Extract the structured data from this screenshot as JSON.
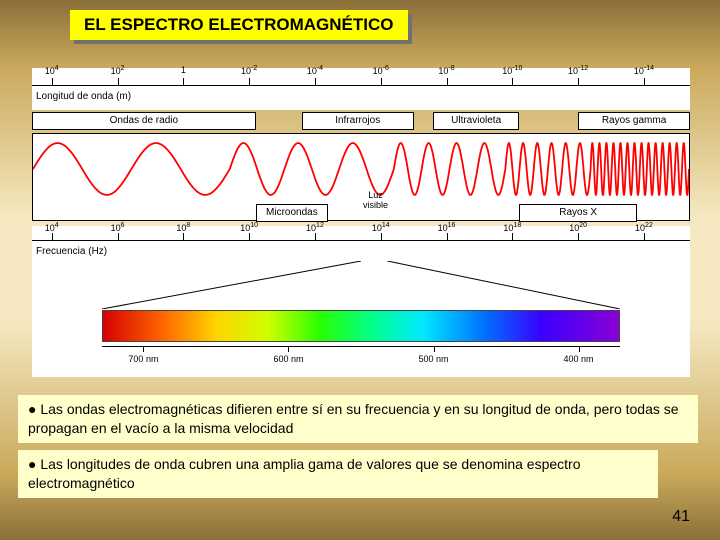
{
  "title": "EL ESPECTRO ELECTROMAGNÉTICO",
  "wavelength_axis": {
    "label": "Longitud de onda (m)",
    "ticks": [
      {
        "exp": "4",
        "pos_pct": 3
      },
      {
        "exp": "2",
        "pos_pct": 13
      },
      {
        "exp": "0",
        "pos_pct": 23,
        "label": "1"
      },
      {
        "exp": "-2",
        "pos_pct": 33
      },
      {
        "exp": "-4",
        "pos_pct": 43
      },
      {
        "exp": "-6",
        "pos_pct": 53
      },
      {
        "exp": "-8",
        "pos_pct": 63
      },
      {
        "exp": "-10",
        "pos_pct": 73
      },
      {
        "exp": "-12",
        "pos_pct": 83
      },
      {
        "exp": "-14",
        "pos_pct": 93
      }
    ]
  },
  "regions_top": [
    {
      "label": "Ondas de radio",
      "left_pct": 0,
      "width_pct": 34
    },
    {
      "label": "Infrarrojos",
      "left_pct": 41,
      "width_pct": 17
    },
    {
      "label": "Ultravioleta",
      "left_pct": 61,
      "width_pct": 13
    },
    {
      "label": "Rayos gamma",
      "left_pct": 83,
      "width_pct": 17
    }
  ],
  "regions_bottom": [
    {
      "label": "Microondas",
      "left_pct": 34,
      "width_pct": 11
    },
    {
      "label": "Rayos X",
      "left_pct": 74,
      "width_pct": 18
    }
  ],
  "luz_visible": "Luz\nvisible",
  "wave": {
    "color": "#ff0000",
    "stroke_width": 1.8,
    "amplitude": 26,
    "cycles_by_zone": [
      {
        "x_end_pct": 30,
        "cycles": 2
      },
      {
        "x_end_pct": 55,
        "cycles": 3
      },
      {
        "x_end_pct": 72,
        "cycles": 4
      },
      {
        "x_end_pct": 85,
        "cycles": 6
      },
      {
        "x_end_pct": 100,
        "cycles": 14
      }
    ]
  },
  "freq_axis": {
    "label": "Frecuencia (Hz)",
    "ticks": [
      {
        "exp": "4",
        "pos_pct": 3
      },
      {
        "exp": "6",
        "pos_pct": 13
      },
      {
        "exp": "8",
        "pos_pct": 23
      },
      {
        "exp": "10",
        "pos_pct": 33
      },
      {
        "exp": "12",
        "pos_pct": 43
      },
      {
        "exp": "14",
        "pos_pct": 53
      },
      {
        "exp": "16",
        "pos_pct": 63
      },
      {
        "exp": "18",
        "pos_pct": 73
      },
      {
        "exp": "20",
        "pos_pct": 83
      },
      {
        "exp": "22",
        "pos_pct": 93
      }
    ]
  },
  "visible_spectrum": {
    "cone_from_pct": [
      50,
      54
    ],
    "nm_ticks": [
      {
        "label": "700 nm",
        "pos_pct": 8
      },
      {
        "label": "600 nm",
        "pos_pct": 36
      },
      {
        "label": "500 nm",
        "pos_pct": 64
      },
      {
        "label": "400 nm",
        "pos_pct": 92
      }
    ],
    "gradient_stops": [
      {
        "color": "#d60000",
        "pct": 0
      },
      {
        "color": "#ff6a00",
        "pct": 12
      },
      {
        "color": "#ffd400",
        "pct": 22
      },
      {
        "color": "#d0ff00",
        "pct": 32
      },
      {
        "color": "#2aff00",
        "pct": 42
      },
      {
        "color": "#00ff88",
        "pct": 52
      },
      {
        "color": "#00e8ff",
        "pct": 62
      },
      {
        "color": "#0070ff",
        "pct": 74
      },
      {
        "color": "#3a00ff",
        "pct": 85
      },
      {
        "color": "#8a00d6",
        "pct": 100
      }
    ]
  },
  "bullets": {
    "b1": "Las ondas electromagnéticas difieren entre sí en su frecuencia y en su longitud de onda, pero todas se propagan en el vacío a la misma velocidad",
    "b2": "Las longitudes de onda cubren una amplia gama de valores que se denomina espectro electromagnético"
  },
  "page_number": "41",
  "colors": {
    "title_bg": "#ffff00",
    "title_shadow": "#707070",
    "bullet_bg": "#ffffcc",
    "bg_gradient": [
      "#8a6f3a",
      "#c9a85a",
      "#f5e8c0"
    ]
  },
  "fonts": {
    "title_pt": 17,
    "body_pt": 14,
    "small_pt": 10,
    "tiny_pt": 9
  }
}
